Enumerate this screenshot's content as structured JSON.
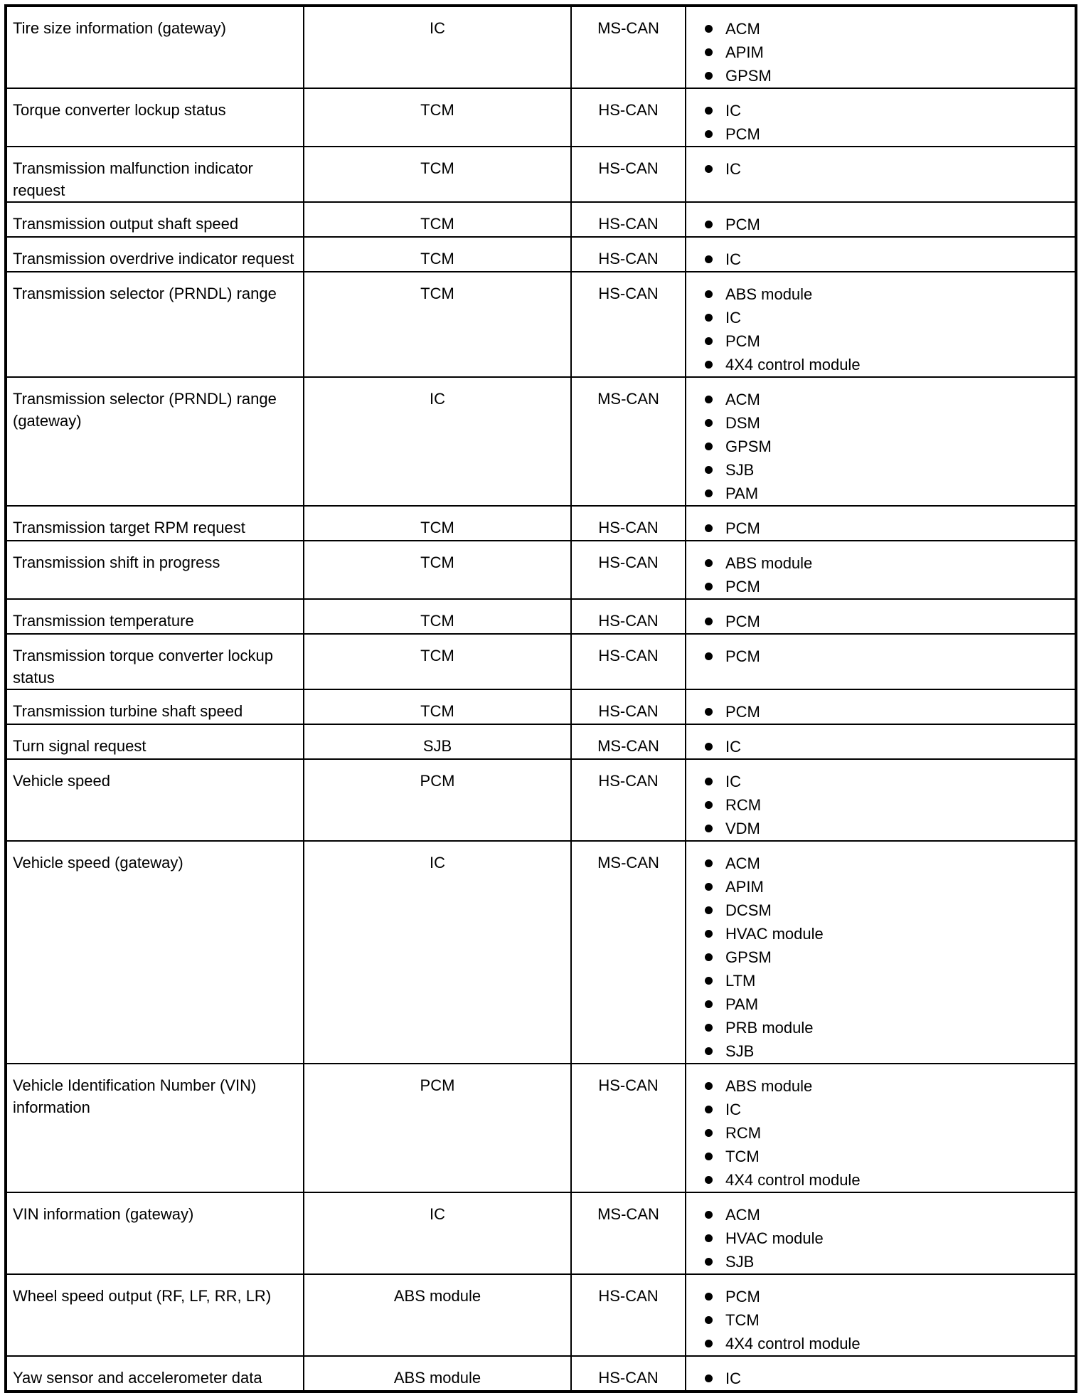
{
  "rows": [
    {
      "message": "Tire size information (gateway)",
      "source": "IC",
      "network": "MS-CAN",
      "receivers": [
        "ACM",
        "APIM",
        "GPSM"
      ]
    },
    {
      "message": "Torque converter lockup status",
      "source": "TCM",
      "network": "HS-CAN",
      "receivers": [
        "IC",
        "PCM"
      ]
    },
    {
      "message": "Transmission malfunction indicator request",
      "source": "TCM",
      "network": "HS-CAN",
      "receivers": [
        "IC"
      ]
    },
    {
      "message": "Transmission output shaft speed",
      "source": "TCM",
      "network": "HS-CAN",
      "receivers": [
        "PCM"
      ]
    },
    {
      "message": "Transmission overdrive indicator request",
      "source": "TCM",
      "network": "HS-CAN",
      "receivers": [
        "IC"
      ]
    },
    {
      "message": "Transmission selector (PRNDL) range",
      "source": "TCM",
      "network": "HS-CAN",
      "receivers": [
        "ABS module",
        "IC",
        "PCM",
        "4X4 control module"
      ]
    },
    {
      "message": "Transmission selector (PRNDL) range (gateway)",
      "source": "IC",
      "network": "MS-CAN",
      "receivers": [
        "ACM",
        "DSM",
        "GPSM",
        "SJB",
        "PAM"
      ]
    },
    {
      "message": "Transmission target RPM request",
      "source": "TCM",
      "network": "HS-CAN",
      "receivers": [
        "PCM"
      ]
    },
    {
      "message": "Transmission shift in progress",
      "source": "TCM",
      "network": "HS-CAN",
      "receivers": [
        "ABS module",
        "PCM"
      ]
    },
    {
      "message": "Transmission temperature",
      "source": "TCM",
      "network": "HS-CAN",
      "receivers": [
        "PCM"
      ]
    },
    {
      "message": "Transmission torque converter lockup status",
      "source": "TCM",
      "network": "HS-CAN",
      "receivers": [
        "PCM"
      ]
    },
    {
      "message": "Transmission turbine shaft speed",
      "source": "TCM",
      "network": "HS-CAN",
      "receivers": [
        "PCM"
      ]
    },
    {
      "message": "Turn signal request",
      "source": "SJB",
      "network": "MS-CAN",
      "receivers": [
        "IC"
      ]
    },
    {
      "message": "Vehicle speed",
      "source": "PCM",
      "network": "HS-CAN",
      "receivers": [
        "IC",
        "RCM",
        "VDM"
      ]
    },
    {
      "message": "Vehicle speed (gateway)",
      "source": "IC",
      "network": "MS-CAN",
      "receivers": [
        "ACM",
        "APIM",
        "DCSM",
        "HVAC module",
        "GPSM",
        "LTM",
        "PAM",
        "PRB module",
        "SJB"
      ]
    },
    {
      "message": "Vehicle Identification Number (VIN) information",
      "source": "PCM",
      "network": "HS-CAN",
      "receivers": [
        "ABS module",
        "IC",
        "RCM",
        "TCM",
        "4X4 control module"
      ]
    },
    {
      "message": "VIN information (gateway)",
      "source": "IC",
      "network": "MS-CAN",
      "receivers": [
        "ACM",
        "HVAC module",
        "SJB"
      ]
    },
    {
      "message": "Wheel speed output (RF, LF, RR, LR)",
      "source": "ABS module",
      "network": "HS-CAN",
      "receivers": [
        "PCM",
        "TCM",
        "4X4 control module"
      ]
    },
    {
      "message": "Yaw sensor and accelerometer data",
      "source": "ABS module",
      "network": "HS-CAN",
      "receivers": [
        "IC"
      ]
    }
  ]
}
